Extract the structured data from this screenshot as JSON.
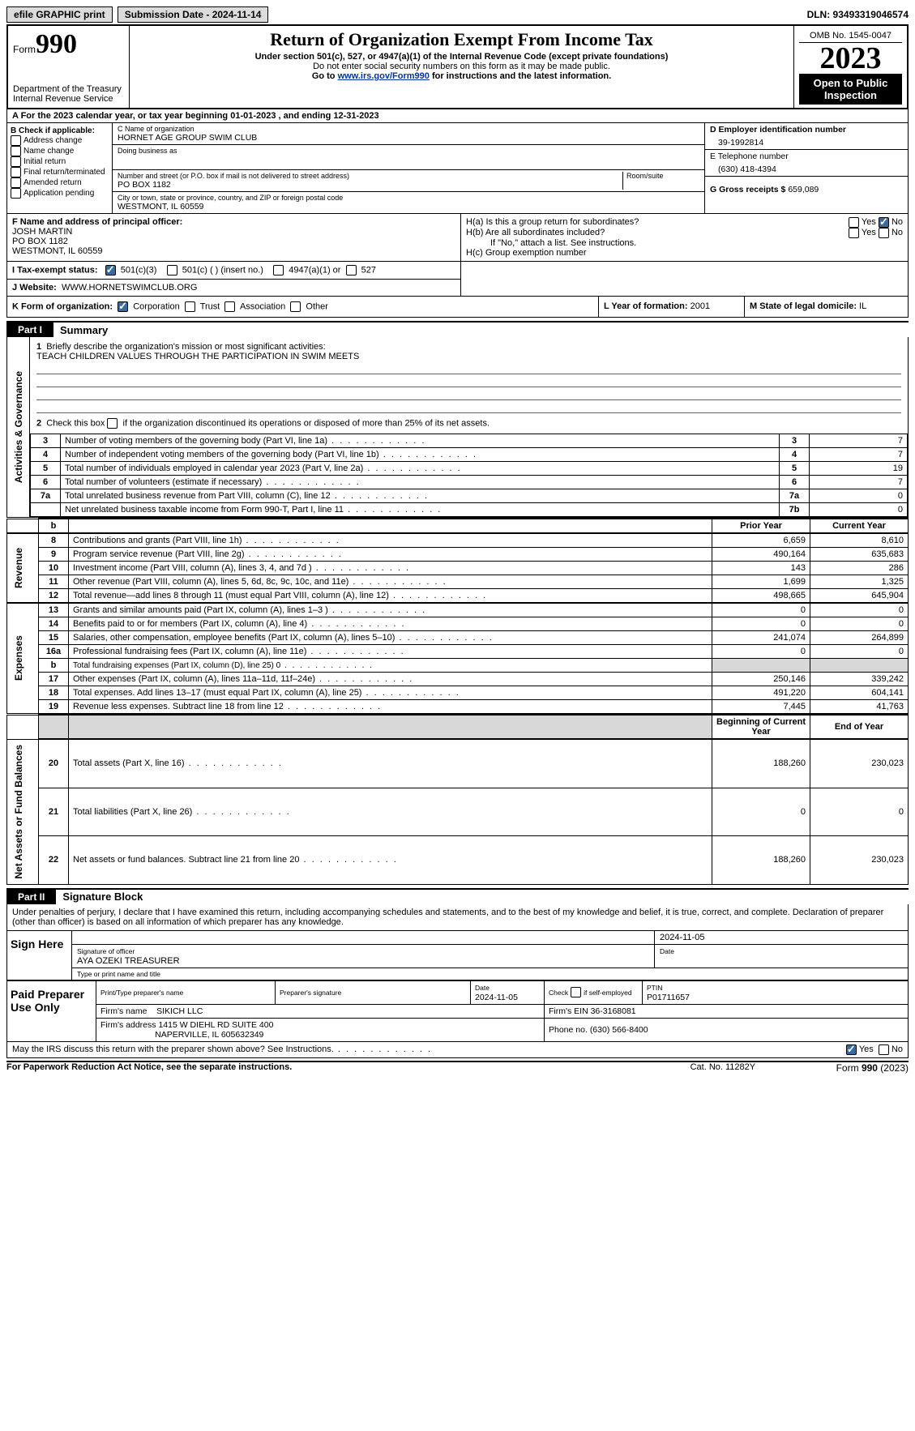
{
  "topbar": {
    "efile": "efile GRAPHIC print",
    "submission": "Submission Date - 2024-11-14",
    "dln": "DLN: 93493319046574"
  },
  "header": {
    "form_word": "Form",
    "form_num": "990",
    "dept": "Department of the Treasury\nInternal Revenue Service",
    "title": "Return of Organization Exempt From Income Tax",
    "sub1": "Under section 501(c), 527, or 4947(a)(1) of the Internal Revenue Code (except private foundations)",
    "sub2": "Do not enter social security numbers on this form as it may be made public.",
    "sub3_pre": "Go to ",
    "sub3_link": "www.irs.gov/Form990",
    "sub3_post": " for instructions and the latest information.",
    "omb": "OMB No. 1545-0047",
    "year": "2023",
    "open": "Open to Public Inspection"
  },
  "period": {
    "label": "A For the 2023 calendar year, or tax year beginning ",
    "begin": "01-01-2023",
    "mid": " , and ending ",
    "end": "12-31-2023"
  },
  "B": {
    "title": "B Check if applicable:",
    "items": [
      "Address change",
      "Name change",
      "Initial return",
      "Final return/terminated",
      "Amended return",
      "Application pending"
    ]
  },
  "C": {
    "name_lbl": "C Name of organization",
    "name": "HORNET AGE GROUP SWIM CLUB",
    "dba_lbl": "Doing business as",
    "street_lbl": "Number and street (or P.O. box if mail is not delivered to street address)",
    "room_lbl": "Room/suite",
    "street": "PO BOX 1182",
    "city_lbl": "City or town, state or province, country, and ZIP or foreign postal code",
    "city": "WESTMONT, IL  60559"
  },
  "D": {
    "ein_lbl": "D Employer identification number",
    "ein": "39-1992814",
    "phone_lbl": "E Telephone number",
    "phone": "(630) 418-4394",
    "gross_lbl": "G Gross receipts $",
    "gross": "659,089"
  },
  "F": {
    "lbl": "F  Name and address of principal officer:",
    "name": "JOSH MARTIN",
    "addr1": "PO BOX 1182",
    "addr2": "WESTMONT, IL  60559"
  },
  "H": {
    "a": "H(a)  Is this a group return for subordinates?",
    "b": "H(b)  Are all subordinates included?",
    "b_note": "If \"No,\" attach a list. See instructions.",
    "c": "H(c)  Group exemption number",
    "yes": "Yes",
    "no": "No"
  },
  "I": {
    "lbl": "I    Tax-exempt status:",
    "o1": "501(c)(3)",
    "o2": "501(c) (  ) (insert no.)",
    "o3": "4947(a)(1) or",
    "o4": "527"
  },
  "J": {
    "lbl": "J   Website:",
    "val": "WWW.HORNETSWIMCLUB.ORG"
  },
  "K": {
    "lbl": "K Form of organization:",
    "o1": "Corporation",
    "o2": "Trust",
    "o3": "Association",
    "o4": "Other"
  },
  "L": {
    "lbl": "L Year of formation:",
    "val": "2001"
  },
  "M": {
    "lbl": "M State of legal domicile:",
    "val": "IL"
  },
  "part1": {
    "tag": "Part I",
    "title": "Summary"
  },
  "summary": {
    "q1": "Briefly describe the organization's mission or most significant activities:",
    "mission": "TEACH CHILDREN VALUES THROUGH THE PARTICIPATION IN SWIM MEETS",
    "q2_pre": "Check this box ",
    "q2_post": " if the organization discontinued its operations or disposed of more than 25% of its net assets.",
    "sides": {
      "ag": "Activities & Governance",
      "rev": "Revenue",
      "exp": "Expenses",
      "na": "Net Assets or Fund Balances"
    }
  },
  "rows_ag": [
    {
      "n": "3",
      "t": "Number of voting members of the governing body (Part VI, line 1a)",
      "b": "3",
      "v": "7"
    },
    {
      "n": "4",
      "t": "Number of independent voting members of the governing body (Part VI, line 1b)",
      "b": "4",
      "v": "7"
    },
    {
      "n": "5",
      "t": "Total number of individuals employed in calendar year 2023 (Part V, line 2a)",
      "b": "5",
      "v": "19"
    },
    {
      "n": "6",
      "t": "Total number of volunteers (estimate if necessary)",
      "b": "6",
      "v": "7"
    },
    {
      "n": "7a",
      "t": "Total unrelated business revenue from Part VIII, column (C), line 12",
      "b": "7a",
      "v": "0"
    },
    {
      "n": "",
      "t": "Net unrelated business taxable income from Form 990-T, Part I, line 11",
      "b": "7b",
      "v": "0"
    }
  ],
  "cols": {
    "prior": "Prior Year",
    "current": "Current Year",
    "boy": "Beginning of Current Year",
    "eoy": "End of Year"
  },
  "rows_rev": [
    {
      "n": "8",
      "t": "Contributions and grants (Part VIII, line 1h)",
      "p": "6,659",
      "c": "8,610"
    },
    {
      "n": "9",
      "t": "Program service revenue (Part VIII, line 2g)",
      "p": "490,164",
      "c": "635,683"
    },
    {
      "n": "10",
      "t": "Investment income (Part VIII, column (A), lines 3, 4, and 7d )",
      "p": "143",
      "c": "286"
    },
    {
      "n": "11",
      "t": "Other revenue (Part VIII, column (A), lines 5, 6d, 8c, 9c, 10c, and 11e)",
      "p": "1,699",
      "c": "1,325"
    },
    {
      "n": "12",
      "t": "Total revenue—add lines 8 through 11 (must equal Part VIII, column (A), line 12)",
      "p": "498,665",
      "c": "645,904"
    }
  ],
  "rows_exp": [
    {
      "n": "13",
      "t": "Grants and similar amounts paid (Part IX, column (A), lines 1–3 )",
      "p": "0",
      "c": "0"
    },
    {
      "n": "14",
      "t": "Benefits paid to or for members (Part IX, column (A), line 4)",
      "p": "0",
      "c": "0"
    },
    {
      "n": "15",
      "t": "Salaries, other compensation, employee benefits (Part IX, column (A), lines 5–10)",
      "p": "241,074",
      "c": "264,899"
    },
    {
      "n": "16a",
      "t": "Professional fundraising fees (Part IX, column (A), line 11e)",
      "p": "0",
      "c": "0"
    },
    {
      "n": "b",
      "t": "Total fundraising expenses (Part IX, column (D), line 25) 0",
      "p": "",
      "c": "",
      "shade": true,
      "small": true
    },
    {
      "n": "17",
      "t": "Other expenses (Part IX, column (A), lines 11a–11d, 11f–24e)",
      "p": "250,146",
      "c": "339,242"
    },
    {
      "n": "18",
      "t": "Total expenses. Add lines 13–17 (must equal Part IX, column (A), line 25)",
      "p": "491,220",
      "c": "604,141"
    },
    {
      "n": "19",
      "t": "Revenue less expenses. Subtract line 18 from line 12",
      "p": "7,445",
      "c": "41,763"
    }
  ],
  "rows_na": [
    {
      "n": "20",
      "t": "Total assets (Part X, line 16)",
      "p": "188,260",
      "c": "230,023"
    },
    {
      "n": "21",
      "t": "Total liabilities (Part X, line 26)",
      "p": "0",
      "c": "0"
    },
    {
      "n": "22",
      "t": "Net assets or fund balances. Subtract line 21 from line 20",
      "p": "188,260",
      "c": "230,023"
    }
  ],
  "part2": {
    "tag": "Part II",
    "title": "Signature Block"
  },
  "sig": {
    "declare": "Under penalties of perjury, I declare that I have examined this return, including accompanying schedules and statements, and to the best of my knowledge and belief, it is true, correct, and complete. Declaration of preparer (other than officer) is based on all information of which preparer has any knowledge.",
    "sign_here": "Sign Here",
    "sig_officer": "Signature of officer",
    "officer": "AYA OZEKI  TREASURER",
    "type_name": "Type or print name and title",
    "date_lbl": "Date",
    "date": "2024-11-05"
  },
  "prep": {
    "title": "Paid Preparer Use Only",
    "h1": "Print/Type preparer's name",
    "h2": "Preparer's signature",
    "h3": "Date",
    "h3v": "2024-11-05",
    "h4": "Check         if self-employed",
    "h5": "PTIN",
    "ptin": "P01711657",
    "firm_lbl": "Firm's name",
    "firm": "SIKICH LLC",
    "ein_lbl": "Firm's EIN",
    "ein": "36-3168081",
    "addr_lbl": "Firm's address",
    "addr1": "1415 W DIEHL RD SUITE 400",
    "addr2": "NAPERVILLE, IL  605632349",
    "phone_lbl": "Phone no.",
    "phone": "(630) 566-8400"
  },
  "may": {
    "q": "May the IRS discuss this return with the preparer shown above? See Instructions.",
    "yes": "Yes",
    "no": "No"
  },
  "footer": {
    "l": "For Paperwork Reduction Act Notice, see the separate instructions.",
    "c": "Cat. No. 11282Y",
    "r_pre": "Form ",
    "r_b": "990",
    "r_post": " (2023)"
  }
}
